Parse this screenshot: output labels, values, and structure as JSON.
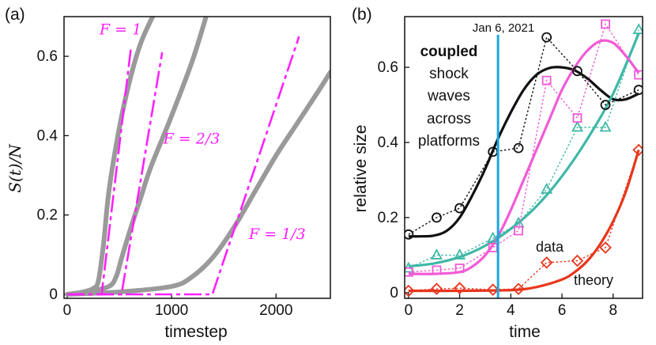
{
  "colors": {
    "gray": "#9a9a9a",
    "magenta": "#ff20ff",
    "black": "#111111",
    "teal": "#3fb8a6",
    "pink": "#f25ad6",
    "red": "#e8361c",
    "vline": "#1aa6e0"
  },
  "chart_data": [
    {
      "type": "line",
      "panel_label": "(a)",
      "xlabel": "timestep",
      "ylabel": "S(t)/N",
      "xlim": [
        -30,
        2520
      ],
      "ylim": [
        -0.01,
        0.7
      ],
      "xticks": [
        {
          "v": 0,
          "label": "0"
        },
        {
          "v": 1000,
          "label": "1000"
        },
        {
          "v": 2000,
          "label": "2000"
        }
      ],
      "yticks": [
        {
          "v": 0,
          "label": "0"
        },
        {
          "v": 0.2,
          "label": "0.2"
        },
        {
          "v": 0.4,
          "label": "0.4"
        },
        {
          "v": 0.6,
          "label": "0.6"
        }
      ],
      "series": [
        {
          "name": "simulation, F = 1",
          "style": "gray-solid",
          "x": [
            0,
            150,
            250,
            300,
            350,
            400,
            500,
            600,
            700,
            800,
            860
          ],
          "y": [
            0,
            0.006,
            0.015,
            0.035,
            0.13,
            0.26,
            0.42,
            0.54,
            0.63,
            0.69,
            0.72
          ]
        },
        {
          "name": "simulation, F = 2/3",
          "style": "gray-solid",
          "x": [
            0,
            200,
            400,
            470,
            520,
            600,
            700,
            800,
            1000,
            1200,
            1330
          ],
          "y": [
            0,
            0.007,
            0.02,
            0.045,
            0.09,
            0.16,
            0.24,
            0.32,
            0.45,
            0.59,
            0.7
          ]
        },
        {
          "name": "simulation, F = 1/3",
          "style": "gray-solid",
          "x": [
            0,
            500,
            1000,
            1200,
            1400,
            1600,
            1800,
            2000,
            2200,
            2400,
            2520
          ],
          "y": [
            0,
            0.006,
            0.02,
            0.045,
            0.095,
            0.17,
            0.26,
            0.35,
            0.43,
            0.51,
            0.56
          ]
        },
        {
          "name": "F = 1",
          "style": "magenta-dashed",
          "x": [
            0,
            330,
            610
          ],
          "y": [
            0,
            0,
            0.62
          ]
        },
        {
          "name": "F = 2/3",
          "style": "magenta-dashed",
          "x": [
            0,
            520,
            910
          ],
          "y": [
            0,
            0,
            0.61
          ]
        },
        {
          "name": "F = 1/3",
          "style": "magenta-dashed",
          "x": [
            0,
            1390,
            2220
          ],
          "y": [
            0,
            0,
            0.65
          ]
        }
      ],
      "annotations": [
        {
          "text": "F = 1",
          "x": 310,
          "y": 0.655
        },
        {
          "text": "F = 2/3",
          "x": 920,
          "y": 0.38
        },
        {
          "text": "F = 1/3",
          "x": 1740,
          "y": 0.14
        }
      ]
    },
    {
      "type": "line",
      "panel_label": "(b)",
      "xlabel": "time",
      "ylabel": "relative size",
      "xlim": [
        -0.15,
        9.15
      ],
      "ylim": [
        -0.015,
        0.735
      ],
      "xticks": [
        {
          "v": 0,
          "label": "0"
        },
        {
          "v": 2,
          "label": "2"
        },
        {
          "v": 4,
          "label": "4"
        },
        {
          "v": 6,
          "label": "6"
        },
        {
          "v": 8,
          "label": "8"
        }
      ],
      "yticks": [
        {
          "v": 0,
          "label": "0"
        },
        {
          "v": 0.2,
          "label": "0.2"
        },
        {
          "v": 0.4,
          "label": "0.4"
        },
        {
          "v": 0.6,
          "label": "0.6"
        }
      ],
      "vline": {
        "x": 3.5,
        "label": "Jan 6, 2021"
      },
      "series": [
        {
          "name": "black data",
          "kind": "data",
          "marker": "circle",
          "color": "black",
          "x": [
            0,
            1.1,
            2.0,
            3.3,
            4.3,
            5.4,
            6.6,
            7.7,
            9.0
          ],
          "y": [
            0.155,
            0.2,
            0.225,
            0.375,
            0.385,
            0.68,
            0.59,
            0.5,
            0.54
          ]
        },
        {
          "name": "black theory",
          "kind": "theory",
          "color": "black",
          "x": [
            0,
            0.5,
            1.0,
            1.5,
            2.0,
            2.5,
            3.0,
            3.5,
            4.0,
            4.5,
            5.0,
            5.5,
            6.0,
            6.5,
            7.0,
            7.5,
            8.0,
            8.5,
            9.0
          ],
          "y": [
            0.15,
            0.15,
            0.152,
            0.165,
            0.2,
            0.26,
            0.33,
            0.41,
            0.48,
            0.54,
            0.58,
            0.598,
            0.6,
            0.592,
            0.57,
            0.54,
            0.515,
            0.515,
            0.53
          ]
        },
        {
          "name": "teal data",
          "kind": "data",
          "marker": "triangle",
          "color": "teal",
          "x": [
            0,
            1.1,
            2.0,
            3.3,
            4.3,
            5.4,
            6.6,
            7.7,
            9.0
          ],
          "y": [
            0.065,
            0.1,
            0.1,
            0.145,
            0.185,
            0.275,
            0.44,
            0.44,
            0.7
          ]
        },
        {
          "name": "teal theory",
          "kind": "theory",
          "color": "teal",
          "x": [
            0,
            1,
            2,
            3,
            4,
            5,
            6,
            7,
            8,
            9
          ],
          "y": [
            0.07,
            0.078,
            0.095,
            0.125,
            0.17,
            0.23,
            0.31,
            0.41,
            0.53,
            0.69
          ]
        },
        {
          "name": "pink data",
          "kind": "data",
          "marker": "square",
          "color": "pink",
          "x": [
            0,
            1.1,
            2.0,
            3.3,
            4.3,
            5.4,
            6.6,
            7.7,
            9.0
          ],
          "y": [
            0.055,
            0.06,
            0.065,
            0.12,
            0.165,
            0.565,
            0.465,
            0.715,
            0.58
          ]
        },
        {
          "name": "pink theory",
          "kind": "theory",
          "color": "pink",
          "x": [
            0,
            1.0,
            2.0,
            2.5,
            3.0,
            3.5,
            4.0,
            4.5,
            5.0,
            5.5,
            6.0,
            6.5,
            7.0,
            7.5,
            8.0,
            8.5,
            9.0
          ],
          "y": [
            0.05,
            0.05,
            0.055,
            0.07,
            0.1,
            0.15,
            0.22,
            0.3,
            0.38,
            0.46,
            0.54,
            0.6,
            0.645,
            0.67,
            0.665,
            0.63,
            0.585
          ]
        },
        {
          "name": "red data",
          "kind": "data",
          "marker": "diamond",
          "color": "red",
          "x": [
            0,
            1.1,
            2.0,
            3.3,
            4.3,
            5.4,
            6.6,
            7.7,
            9.0
          ],
          "y": [
            0.005,
            0.01,
            0.012,
            0.008,
            0.01,
            0.08,
            0.085,
            0.12,
            0.38
          ]
        },
        {
          "name": "red theory",
          "kind": "theory",
          "color": "red",
          "x": [
            0,
            2,
            4,
            5,
            6,
            6.5,
            7,
            7.5,
            8,
            8.5,
            9.0
          ],
          "y": [
            0.005,
            0.005,
            0.007,
            0.015,
            0.035,
            0.055,
            0.085,
            0.13,
            0.19,
            0.27,
            0.38
          ]
        }
      ],
      "text_block": [
        "coupled",
        "shock",
        "waves",
        "across",
        "platforms"
      ],
      "labels": {
        "data": "data",
        "theory": "theory"
      }
    }
  ]
}
